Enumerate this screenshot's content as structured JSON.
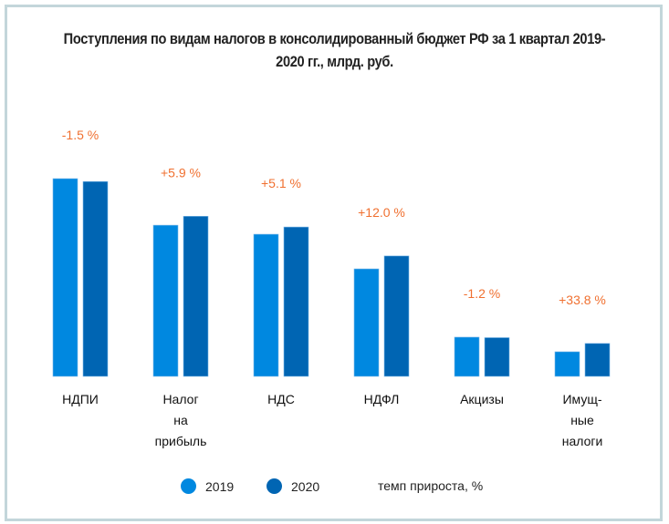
{
  "title": "Поступления по видам налогов в консолидированный бюджет РФ  за 1 квартал 2019-2020 гг., млрд. руб.",
  "title_lines": [
    "Поступления по видам налогов в консолидированный бюджет РФ  за 1 квартал 2019-",
    "2020 гг., млрд. руб."
  ],
  "colors": {
    "series_2019": "#0088e0",
    "series_2020": "#0065b3",
    "growth_label": "#f07030",
    "border": "#c3d6da"
  },
  "legend": {
    "items": [
      {
        "label": "2019",
        "color": "#0088e0"
      },
      {
        "label": "2020",
        "color": "#0065b3"
      }
    ],
    "note": "темп прироста, %"
  },
  "chart_data": {
    "type": "bar",
    "title": "Поступления по видам налогов в консолидированный бюджет РФ  за 1 квартал 2019-2020 гг., млрд. руб.",
    "xlabel": "",
    "ylabel": "",
    "ylim": [
      0,
      1800
    ],
    "grid": false,
    "legend_position": "bottom",
    "categories": [
      [
        "НДПИ"
      ],
      [
        "Налог",
        "на",
        "прибыль"
      ],
      [
        "НДС"
      ],
      [
        "НДФЛ"
      ],
      [
        "Акцизы"
      ],
      [
        "Имущ-",
        "ные",
        "налоги"
      ]
    ],
    "series": [
      {
        "name": "2019",
        "values": [
          1639,
          1253,
          1178,
          891,
          325,
          204
        ]
      },
      {
        "name": "2020",
        "values": [
          1615,
          1327,
          1238,
          998,
          321,
          273
        ]
      }
    ],
    "annotations": [
      "-1.5 %",
      "+5.9 %",
      "+5.1 %",
      "+12.0 %",
      "-1.2 %",
      "+33.8 %"
    ],
    "annotation_meaning": "темп прироста, %"
  }
}
